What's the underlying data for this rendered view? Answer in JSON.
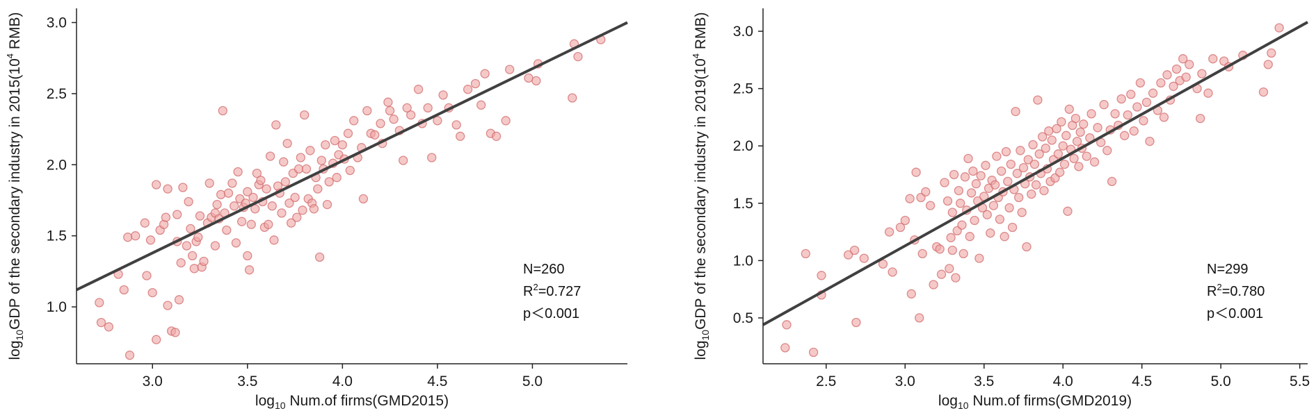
{
  "colors": {
    "point_fill": "#f0a5a5",
    "point_stroke": "#d06a6a",
    "fit_line": "#404040",
    "axis": "#222222"
  },
  "chart_data": [
    {
      "type": "scatter",
      "xlabel": {
        "log": "log",
        "sub": "10",
        "text": " Num.of firms(GMD2015)"
      },
      "ylabel": {
        "log": "log",
        "sub": "10",
        "pre": "GDP of the secondary industry in 2015(10",
        "sup": "4",
        "post": " RMB)"
      },
      "xlim": [
        2.6,
        5.5
      ],
      "ylim": [
        0.6,
        3.1
      ],
      "xticks": [
        "3.0",
        "3.5",
        "4.0",
        "4.5",
        "5.0"
      ],
      "yticks": [
        "1.0",
        "1.5",
        "2.0",
        "2.5",
        "3.0"
      ],
      "fit": {
        "x": [
          2.6,
          5.5
        ],
        "y": [
          1.12,
          3.0
        ]
      },
      "annotation": {
        "n": "N=260",
        "r2_pre": "R",
        "r2_sup": "2",
        "r2_post": "=0.727",
        "p": "p＜0.001"
      },
      "points": [
        [
          2.72,
          1.03
        ],
        [
          2.73,
          0.89
        ],
        [
          2.77,
          0.86
        ],
        [
          2.82,
          1.23
        ],
        [
          2.85,
          1.12
        ],
        [
          2.87,
          1.49
        ],
        [
          2.88,
          0.66
        ],
        [
          2.91,
          1.5
        ],
        [
          2.96,
          1.59
        ],
        [
          2.97,
          1.22
        ],
        [
          2.99,
          1.47
        ],
        [
          3.0,
          1.1
        ],
        [
          3.02,
          1.86
        ],
        [
          3.02,
          0.77
        ],
        [
          3.04,
          1.54
        ],
        [
          3.06,
          1.58
        ],
        [
          3.07,
          1.63
        ],
        [
          3.08,
          1.83
        ],
        [
          3.08,
          1.01
        ],
        [
          3.1,
          0.83
        ],
        [
          3.12,
          0.82
        ],
        [
          3.13,
          1.65
        ],
        [
          3.13,
          1.46
        ],
        [
          3.14,
          1.05
        ],
        [
          3.15,
          1.31
        ],
        [
          3.16,
          1.84
        ],
        [
          3.18,
          1.43
        ],
        [
          3.19,
          1.74
        ],
        [
          3.2,
          1.55
        ],
        [
          3.21,
          1.36
        ],
        [
          3.22,
          1.27
        ],
        [
          3.23,
          1.46
        ],
        [
          3.24,
          1.49
        ],
        [
          3.25,
          1.64
        ],
        [
          3.26,
          1.28
        ],
        [
          3.27,
          1.32
        ],
        [
          3.29,
          1.59
        ],
        [
          3.3,
          1.87
        ],
        [
          3.31,
          1.63
        ],
        [
          3.33,
          1.66
        ],
        [
          3.33,
          1.43
        ],
        [
          3.34,
          1.72
        ],
        [
          3.35,
          1.62
        ],
        [
          3.36,
          1.79
        ],
        [
          3.37,
          2.38
        ],
        [
          3.38,
          1.66
        ],
        [
          3.39,
          1.54
        ],
        [
          3.4,
          1.8
        ],
        [
          3.42,
          1.87
        ],
        [
          3.43,
          1.71
        ],
        [
          3.44,
          1.45
        ],
        [
          3.45,
          1.95
        ],
        [
          3.46,
          1.76
        ],
        [
          3.47,
          1.6
        ],
        [
          3.48,
          1.7
        ],
        [
          3.49,
          1.73
        ],
        [
          3.5,
          1.36
        ],
        [
          3.5,
          1.81
        ],
        [
          3.51,
          1.26
        ],
        [
          3.52,
          1.58
        ],
        [
          3.53,
          1.77
        ],
        [
          3.54,
          1.69
        ],
        [
          3.55,
          1.94
        ],
        [
          3.56,
          1.86
        ],
        [
          3.57,
          1.89
        ],
        [
          3.58,
          1.74
        ],
        [
          3.59,
          1.56
        ],
        [
          3.6,
          1.83
        ],
        [
          3.61,
          1.58
        ],
        [
          3.62,
          2.06
        ],
        [
          3.63,
          1.71
        ],
        [
          3.64,
          1.47
        ],
        [
          3.65,
          2.28
        ],
        [
          3.66,
          1.85
        ],
        [
          3.67,
          1.8
        ],
        [
          3.68,
          1.66
        ],
        [
          3.69,
          2.02
        ],
        [
          3.7,
          1.88
        ],
        [
          3.71,
          2.15
        ],
        [
          3.72,
          1.73
        ],
        [
          3.73,
          1.59
        ],
        [
          3.74,
          1.94
        ],
        [
          3.75,
          1.77
        ],
        [
          3.76,
          1.63
        ],
        [
          3.77,
          1.97
        ],
        [
          3.78,
          2.05
        ],
        [
          3.79,
          1.68
        ],
        [
          3.8,
          2.35
        ],
        [
          3.81,
          1.97
        ],
        [
          3.82,
          1.76
        ],
        [
          3.83,
          2.1
        ],
        [
          3.84,
          1.73
        ],
        [
          3.85,
          1.69
        ],
        [
          3.86,
          1.91
        ],
        [
          3.87,
          1.83
        ],
        [
          3.88,
          1.35
        ],
        [
          3.89,
          2.03
        ],
        [
          3.9,
          1.97
        ],
        [
          3.91,
          2.14
        ],
        [
          3.92,
          1.72
        ],
        [
          3.93,
          1.88
        ],
        [
          3.95,
          2.01
        ],
        [
          3.96,
          2.17
        ],
        [
          3.97,
          1.91
        ],
        [
          3.98,
          2.07
        ],
        [
          4.0,
          2.14
        ],
        [
          4.01,
          2.04
        ],
        [
          4.03,
          2.22
        ],
        [
          4.04,
          1.96
        ],
        [
          4.06,
          2.31
        ],
        [
          4.08,
          2.05
        ],
        [
          4.1,
          2.12
        ],
        [
          4.11,
          1.76
        ],
        [
          4.13,
          2.38
        ],
        [
          4.15,
          2.22
        ],
        [
          4.17,
          2.21
        ],
        [
          4.2,
          2.29
        ],
        [
          4.21,
          2.15
        ],
        [
          4.24,
          2.44
        ],
        [
          4.25,
          2.38
        ],
        [
          4.27,
          2.32
        ],
        [
          4.3,
          2.24
        ],
        [
          4.32,
          2.03
        ],
        [
          4.34,
          2.4
        ],
        [
          4.36,
          2.35
        ],
        [
          4.4,
          2.53
        ],
        [
          4.42,
          2.29
        ],
        [
          4.45,
          2.4
        ],
        [
          4.47,
          2.05
        ],
        [
          4.5,
          2.31
        ],
        [
          4.53,
          2.49
        ],
        [
          4.56,
          2.4
        ],
        [
          4.6,
          2.28
        ],
        [
          4.62,
          2.2
        ],
        [
          4.66,
          2.53
        ],
        [
          4.7,
          2.57
        ],
        [
          4.73,
          2.42
        ],
        [
          4.75,
          2.64
        ],
        [
          4.78,
          2.22
        ],
        [
          4.81,
          2.2
        ],
        [
          4.86,
          2.31
        ],
        [
          4.88,
          2.67
        ],
        [
          4.98,
          2.61
        ],
        [
          5.02,
          2.59
        ],
        [
          5.03,
          2.71
        ],
        [
          5.21,
          2.47
        ],
        [
          5.22,
          2.85
        ],
        [
          5.24,
          2.76
        ],
        [
          5.36,
          2.88
        ]
      ]
    },
    {
      "type": "scatter",
      "xlabel": {
        "log": "log",
        "sub": "10",
        "text": " Num.of firms(GMD2019)"
      },
      "ylabel": {
        "log": "log",
        "sub": "10",
        "pre": "GDP of the secondary industry in 2019(10",
        "sup": "4",
        "post": " RMB)"
      },
      "xlim": [
        2.1,
        5.55
      ],
      "ylim": [
        0.1,
        3.2
      ],
      "xticks": [
        "2.5",
        "3.0",
        "3.5",
        "4.0",
        "4.5",
        "5.0",
        "5.5"
      ],
      "yticks": [
        "0.5",
        "1.0",
        "1.5",
        "2.0",
        "2.5",
        "3.0"
      ],
      "fit": {
        "x": [
          2.1,
          5.55
        ],
        "y": [
          0.44,
          3.08
        ]
      },
      "annotation": {
        "n": "N=299",
        "r2_pre": "R",
        "r2_sup": "2",
        "r2_post": "=0.780",
        "p": "p＜0.001"
      },
      "points": [
        [
          2.24,
          0.24
        ],
        [
          2.25,
          0.44
        ],
        [
          2.37,
          1.06
        ],
        [
          2.42,
          0.2
        ],
        [
          2.47,
          0.87
        ],
        [
          2.47,
          0.7
        ],
        [
          2.64,
          1.05
        ],
        [
          2.68,
          1.09
        ],
        [
          2.69,
          0.46
        ],
        [
          2.74,
          1.02
        ],
        [
          2.86,
          0.97
        ],
        [
          2.9,
          1.25
        ],
        [
          2.92,
          0.9
        ],
        [
          2.97,
          1.29
        ],
        [
          3.0,
          1.35
        ],
        [
          3.03,
          1.54
        ],
        [
          3.04,
          0.71
        ],
        [
          3.06,
          1.18
        ],
        [
          3.07,
          1.77
        ],
        [
          3.09,
          0.5
        ],
        [
          3.1,
          1.55
        ],
        [
          3.11,
          1.06
        ],
        [
          3.13,
          1.6
        ],
        [
          3.16,
          1.48
        ],
        [
          3.18,
          0.79
        ],
        [
          3.2,
          1.12
        ],
        [
          3.22,
          1.1
        ],
        [
          3.23,
          0.88
        ],
        [
          3.25,
          1.68
        ],
        [
          3.27,
          1.52
        ],
        [
          3.28,
          0.93
        ],
        [
          3.29,
          1.2
        ],
        [
          3.3,
          1.42
        ],
        [
          3.3,
          1.09
        ],
        [
          3.31,
          1.75
        ],
        [
          3.32,
          0.85
        ],
        [
          3.33,
          1.26
        ],
        [
          3.34,
          1.61
        ],
        [
          3.35,
          1.5
        ],
        [
          3.36,
          1.31
        ],
        [
          3.37,
          1.06
        ],
        [
          3.38,
          1.73
        ],
        [
          3.39,
          1.44
        ],
        [
          3.4,
          1.89
        ],
        [
          3.41,
          1.21
        ],
        [
          3.42,
          1.59
        ],
        [
          3.43,
          1.78
        ],
        [
          3.44,
          1.35
        ],
        [
          3.45,
          1.67
        ],
        [
          3.46,
          1.52
        ],
        [
          3.47,
          1.02
        ],
        [
          3.48,
          1.74
        ],
        [
          3.49,
          1.46
        ],
        [
          3.5,
          1.56
        ],
        [
          3.51,
          1.83
        ],
        [
          3.52,
          1.4
        ],
        [
          3.53,
          1.63
        ],
        [
          3.54,
          1.24
        ],
        [
          3.55,
          1.7
        ],
        [
          3.56,
          1.48
        ],
        [
          3.57,
          1.66
        ],
        [
          3.58,
          1.91
        ],
        [
          3.59,
          1.55
        ],
        [
          3.6,
          1.36
        ],
        [
          3.61,
          1.78
        ],
        [
          3.62,
          1.6
        ],
        [
          3.63,
          1.21
        ],
        [
          3.64,
          1.95
        ],
        [
          3.65,
          1.69
        ],
        [
          3.66,
          1.46
        ],
        [
          3.67,
          1.84
        ],
        [
          3.68,
          1.29
        ],
        [
          3.69,
          1.62
        ],
        [
          3.7,
          2.3
        ],
        [
          3.71,
          1.76
        ],
        [
          3.72,
          1.55
        ],
        [
          3.73,
          1.96
        ],
        [
          3.74,
          1.42
        ],
        [
          3.75,
          1.81
        ],
        [
          3.76,
          1.67
        ],
        [
          3.77,
          1.12
        ],
        [
          3.78,
          1.88
        ],
        [
          3.79,
          1.73
        ],
        [
          3.8,
          1.58
        ],
        [
          3.81,
          2.01
        ],
        [
          3.82,
          1.84
        ],
        [
          3.83,
          1.66
        ],
        [
          3.84,
          2.4
        ],
        [
          3.85,
          1.93
        ],
        [
          3.86,
          1.76
        ],
        [
          3.87,
          2.08
        ],
        [
          3.88,
          1.61
        ],
        [
          3.89,
          1.98
        ],
        [
          3.9,
          1.8
        ],
        [
          3.91,
          2.13
        ],
        [
          3.92,
          1.69
        ],
        [
          3.93,
          2.05
        ],
        [
          3.94,
          1.88
        ],
        [
          3.95,
          1.72
        ],
        [
          3.96,
          2.15
        ],
        [
          3.97,
          1.93
        ],
        [
          3.98,
          1.77
        ],
        [
          3.99,
          2.21
        ],
        [
          4.0,
          2.0
        ],
        [
          4.01,
          1.84
        ],
        [
          4.02,
          2.09
        ],
        [
          4.03,
          1.43
        ],
        [
          4.04,
          2.32
        ],
        [
          4.05,
          1.97
        ],
        [
          4.06,
          2.18
        ],
        [
          4.07,
          1.89
        ],
        [
          4.08,
          2.24
        ],
        [
          4.09,
          2.04
        ],
        [
          4.1,
          1.82
        ],
        [
          4.11,
          2.12
        ],
        [
          4.12,
          1.98
        ],
        [
          4.13,
          2.19
        ],
        [
          4.15,
          1.91
        ],
        [
          4.17,
          2.07
        ],
        [
          4.18,
          2.28
        ],
        [
          4.2,
          1.86
        ],
        [
          4.22,
          2.16
        ],
        [
          4.24,
          2.03
        ],
        [
          4.26,
          2.36
        ],
        [
          4.28,
          1.96
        ],
        [
          4.3,
          2.14
        ],
        [
          4.31,
          1.69
        ],
        [
          4.33,
          2.28
        ],
        [
          4.35,
          2.18
        ],
        [
          4.37,
          2.41
        ],
        [
          4.39,
          2.09
        ],
        [
          4.41,
          2.27
        ],
        [
          4.43,
          2.45
        ],
        [
          4.45,
          2.13
        ],
        [
          4.47,
          2.34
        ],
        [
          4.49,
          2.55
        ],
        [
          4.51,
          2.22
        ],
        [
          4.53,
          2.38
        ],
        [
          4.55,
          2.04
        ],
        [
          4.57,
          2.46
        ],
        [
          4.6,
          2.31
        ],
        [
          4.62,
          2.55
        ],
        [
          4.64,
          2.25
        ],
        [
          4.66,
          2.62
        ],
        [
          4.68,
          2.4
        ],
        [
          4.7,
          2.52
        ],
        [
          4.72,
          2.67
        ],
        [
          4.74,
          2.57
        ],
        [
          4.76,
          2.76
        ],
        [
          4.78,
          2.6
        ],
        [
          4.8,
          2.71
        ],
        [
          4.85,
          2.5
        ],
        [
          4.87,
          2.24
        ],
        [
          4.88,
          2.63
        ],
        [
          4.92,
          2.46
        ],
        [
          4.95,
          2.76
        ],
        [
          5.02,
          2.74
        ],
        [
          5.05,
          2.69
        ],
        [
          5.14,
          2.79
        ],
        [
          5.27,
          2.47
        ],
        [
          5.3,
          2.71
        ],
        [
          5.32,
          2.81
        ],
        [
          5.37,
          3.03
        ]
      ]
    }
  ]
}
